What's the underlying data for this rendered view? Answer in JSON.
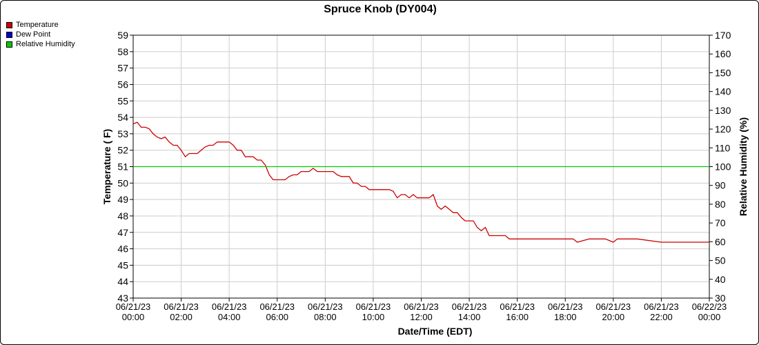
{
  "chart_data": {
    "type": "line",
    "title": "Spruce Knob (DY004)",
    "xlabel": "Date/Time (EDT)",
    "ylabel_left": "Temperature ( F)",
    "ylabel_right": "Relative Humidity (%)",
    "ylim_left": [
      43,
      59
    ],
    "ylim_right": [
      30,
      170
    ],
    "xlim_hours": [
      0,
      24
    ],
    "grid": true,
    "legend_position": "top-left",
    "x_ticks": [
      {
        "date": "06/21/23",
        "time": "00:00"
      },
      {
        "date": "06/21/23",
        "time": "02:00"
      },
      {
        "date": "06/21/23",
        "time": "04:00"
      },
      {
        "date": "06/21/23",
        "time": "06:00"
      },
      {
        "date": "06/21/23",
        "time": "08:00"
      },
      {
        "date": "06/21/23",
        "time": "10:00"
      },
      {
        "date": "06/21/23",
        "time": "12:00"
      },
      {
        "date": "06/21/23",
        "time": "14:00"
      },
      {
        "date": "06/21/23",
        "time": "16:00"
      },
      {
        "date": "06/21/23",
        "time": "18:00"
      },
      {
        "date": "06/21/23",
        "time": "20:00"
      },
      {
        "date": "06/21/23",
        "time": "22:00"
      },
      {
        "date": "06/22/23",
        "time": "00:00"
      }
    ],
    "y_ticks_left": [
      43,
      44,
      45,
      46,
      47,
      48,
      49,
      50,
      51,
      52,
      53,
      54,
      55,
      56,
      57,
      58,
      59
    ],
    "y_ticks_right": [
      30,
      40,
      50,
      60,
      70,
      80,
      90,
      100,
      110,
      120,
      130,
      140,
      150,
      160,
      170
    ],
    "legend": [
      {
        "name": "Temperature",
        "color": "#cc0000"
      },
      {
        "name": "Dew Point",
        "color": "#0000cc"
      },
      {
        "name": "Relative Humidity",
        "color": "#00cc00"
      }
    ],
    "series": [
      {
        "name": "Temperature",
        "color": "#cc0000",
        "axis": "left",
        "x": [
          0,
          0.17,
          0.33,
          0.5,
          0.67,
          0.83,
          1.0,
          1.17,
          1.33,
          1.5,
          1.67,
          1.83,
          2.0,
          2.17,
          2.33,
          2.5,
          2.67,
          2.83,
          3.0,
          3.17,
          3.33,
          3.5,
          3.67,
          3.83,
          4.0,
          4.17,
          4.33,
          4.5,
          4.67,
          4.83,
          5.0,
          5.17,
          5.33,
          5.5,
          5.67,
          5.83,
          6.0,
          6.17,
          6.33,
          6.5,
          6.67,
          6.83,
          7.0,
          7.17,
          7.33,
          7.5,
          7.67,
          7.83,
          8.0,
          8.17,
          8.33,
          8.5,
          8.67,
          8.83,
          9.0,
          9.17,
          9.33,
          9.5,
          9.67,
          9.83,
          10.0,
          10.17,
          10.33,
          10.5,
          10.67,
          10.83,
          11.0,
          11.17,
          11.33,
          11.5,
          11.67,
          11.83,
          12.0,
          12.17,
          12.33,
          12.5,
          12.67,
          12.83,
          13.0,
          13.17,
          13.33,
          13.5,
          13.67,
          13.83,
          14.0,
          14.17,
          14.33,
          14.5,
          14.67,
          14.83,
          15.0,
          15.17,
          15.33,
          15.5,
          15.67,
          16.0,
          16.5,
          17.0,
          17.5,
          18.0,
          18.17,
          18.33,
          18.5,
          19.0,
          19.33,
          19.5,
          19.67,
          20.0,
          20.17,
          20.33,
          20.5,
          21.0,
          22.0,
          23.0,
          24.0
        ],
        "y": [
          53.6,
          53.7,
          53.4,
          53.4,
          53.3,
          53.0,
          52.8,
          52.7,
          52.8,
          52.5,
          52.3,
          52.3,
          52.0,
          51.6,
          51.8,
          51.8,
          51.8,
          52.0,
          52.2,
          52.3,
          52.3,
          52.5,
          52.5,
          52.5,
          52.5,
          52.3,
          52.0,
          52.0,
          51.6,
          51.6,
          51.6,
          51.4,
          51.4,
          51.1,
          50.5,
          50.2,
          50.2,
          50.2,
          50.2,
          50.4,
          50.5,
          50.5,
          50.7,
          50.7,
          50.7,
          50.9,
          50.7,
          50.7,
          50.7,
          50.7,
          50.7,
          50.5,
          50.4,
          50.4,
          50.4,
          50.0,
          50.0,
          49.8,
          49.8,
          49.6,
          49.6,
          49.6,
          49.6,
          49.6,
          49.6,
          49.5,
          49.1,
          49.3,
          49.3,
          49.1,
          49.3,
          49.1,
          49.1,
          49.1,
          49.1,
          49.3,
          48.6,
          48.4,
          48.6,
          48.4,
          48.2,
          48.2,
          47.9,
          47.7,
          47.7,
          47.7,
          47.3,
          47.1,
          47.3,
          46.8,
          46.8,
          46.8,
          46.8,
          46.8,
          46.6,
          46.6,
          46.6,
          46.6,
          46.6,
          46.6,
          46.6,
          46.6,
          46.4,
          46.6,
          46.6,
          46.6,
          46.6,
          46.4,
          46.6,
          46.6,
          46.6,
          46.6,
          46.4,
          46.4,
          46.4
        ]
      },
      {
        "name": "Relative Humidity",
        "color": "#00cc00",
        "axis": "right",
        "x": [
          0,
          24
        ],
        "y": [
          100,
          100
        ]
      }
    ]
  }
}
